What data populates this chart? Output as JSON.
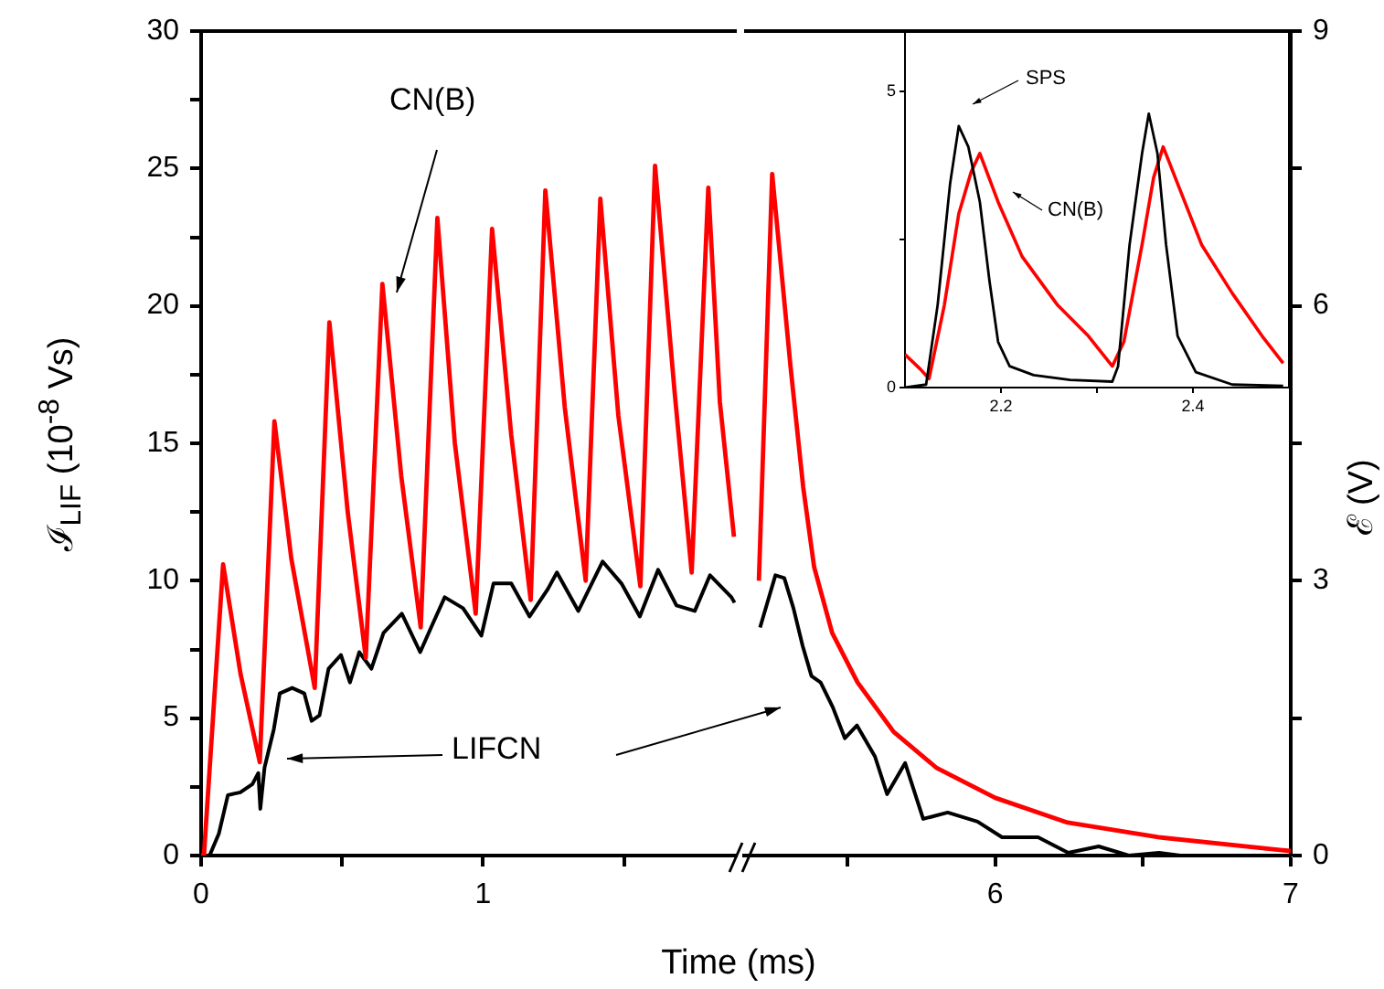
{
  "chart_data": [
    {
      "type": "line",
      "annotations": [
        "CN(B)",
        "LIFCN"
      ],
      "xlabel": "Time (ms)",
      "ylabel": "ℐ$_{LIF}$ (10$^{-8}$ Vs)",
      "xlim": [
        0,
        1.9
      ],
      "xticks": [
        0,
        {
          "value": 0.5,
          "label": null
        },
        1,
        {
          "value": 1.5,
          "label": null
        }
      ],
      "ylim": [
        0,
        30
      ],
      "yticks": [
        0,
        {
          "value": 2.5,
          "label": null
        },
        5,
        {
          "value": 7.5,
          "label": null
        },
        10,
        {
          "value": 12.5,
          "label": null
        },
        15,
        {
          "value": 17.5,
          "label": null
        },
        20,
        {
          "value": 22.5,
          "label": null
        },
        25,
        {
          "value": 27.5,
          "label": null
        },
        30
      ],
      "legend": false,
      "grid": false,
      "series": [
        {
          "color": "#ff0000",
          "x": [
            0,
            0.01,
            0.078,
            0.14,
            0.208,
            0.26,
            0.32,
            0.403,
            0.455,
            0.52,
            0.584,
            0.643,
            0.71,
            0.779,
            0.838,
            0.9,
            0.974,
            1.032,
            1.1,
            1.169,
            1.221,
            1.29,
            1.364,
            1.416,
            1.48,
            1.558,
            1.61,
            1.68,
            1.74,
            1.799,
            1.84,
            1.89
          ],
          "values": [
            0,
            0,
            10.6,
            6.6,
            3.4,
            15.8,
            10.8,
            6.1,
            19.4,
            12.5,
            7.2,
            20.8,
            13.8,
            8.3,
            23.2,
            15.0,
            8.8,
            22.8,
            15.3,
            9.3,
            24.2,
            16.3,
            10.0,
            23.9,
            16.0,
            9.8,
            25.1,
            16.8,
            10.3,
            24.3,
            16.5,
            11.6
          ]
        },
        {
          "color": "#000000",
          "x": [
            0,
            0.03,
            0.063,
            0.095,
            0.139,
            0.182,
            0.203,
            0.21,
            0.225,
            0.258,
            0.279,
            0.323,
            0.366,
            0.392,
            0.42,
            0.452,
            0.496,
            0.528,
            0.561,
            0.604,
            0.647,
            0.712,
            0.777,
            0.82,
            0.864,
            0.929,
            0.994,
            1.037,
            1.1,
            1.165,
            1.23,
            1.262,
            1.338,
            1.424,
            1.491,
            1.556,
            1.621,
            1.686,
            1.751,
            1.805,
            1.881,
            1.892
          ],
          "values": [
            0,
            0,
            0.8,
            2.2,
            2.3,
            2.6,
            3.0,
            1.7,
            3.2,
            4.6,
            5.9,
            6.1,
            5.9,
            4.9,
            5.1,
            6.8,
            7.3,
            6.3,
            7.4,
            6.8,
            8.1,
            8.8,
            7.4,
            8.4,
            9.4,
            9.0,
            8.0,
            9.9,
            9.9,
            8.7,
            9.7,
            10.3,
            8.9,
            10.7,
            9.9,
            8.7,
            10.4,
            9.1,
            8.9,
            10.2,
            9.4,
            9.2
          ]
        }
      ]
    },
    {
      "type": "line",
      "y2label": "ℰ (V)",
      "xlim": [
        5.15,
        7
      ],
      "xticks": [
        {
          "value": 5.5,
          "label": null
        },
        6,
        {
          "value": 6.5,
          "label": null
        },
        7
      ],
      "y2lim": [
        0,
        9
      ],
      "y2ticks": [
        0,
        {
          "value": 1.5,
          "label": null
        },
        3,
        {
          "value": 4.5,
          "label": null
        },
        6,
        {
          "value": 7.5,
          "label": null
        },
        9
      ],
      "legend": false,
      "grid": false,
      "series": [
        {
          "color": "#ff0000",
          "axis": "y2",
          "x": [
            5.2,
            5.245,
            5.307,
            5.35,
            5.387,
            5.448,
            5.534,
            5.656,
            5.8,
            6.0,
            6.245,
            6.552,
            6.963,
            7.0
          ],
          "values": [
            3.0,
            7.44,
            5.34,
            4.02,
            3.15,
            2.43,
            1.89,
            1.35,
            0.96,
            0.63,
            0.36,
            0.2,
            0.06,
            0.05
          ]
        },
        {
          "color": "#000000",
          "axis": "y2",
          "x": [
            5.204,
            5.256,
            5.286,
            5.317,
            5.348,
            5.378,
            5.409,
            5.45,
            5.491,
            5.532,
            5.593,
            5.634,
            5.695,
            5.756,
            5.839,
            5.94,
            6.023,
            6.145,
            6.247,
            6.35,
            6.452,
            6.554,
            6.626
          ],
          "values": [
            2.49,
            3.06,
            3.03,
            2.7,
            2.29,
            1.96,
            1.89,
            1.62,
            1.28,
            1.42,
            1.08,
            0.67,
            1.01,
            0.4,
            0.47,
            0.37,
            0.2,
            0.2,
            0.03,
            0.1,
            0,
            0.03,
            0
          ]
        }
      ]
    },
    {
      "type": "line",
      "annotations": [
        "SPS",
        "CN(B)"
      ],
      "xlim": [
        2.1,
        2.5
      ],
      "xticks": [
        2.2,
        {
          "value": 2.3,
          "label": null
        },
        2.4
      ],
      "ylim": [
        0,
        6
      ],
      "yticks": [
        0,
        {
          "value": 2.5,
          "label": null
        },
        5
      ],
      "legend": false,
      "grid": false,
      "series": [
        {
          "color": "#000000",
          "x": [
            2.1,
            2.122,
            2.134,
            2.147,
            2.156,
            2.166,
            2.178,
            2.188,
            2.197,
            2.209,
            2.234,
            2.272,
            2.316,
            2.322,
            2.334,
            2.347,
            2.354,
            2.363,
            2.372,
            2.384,
            2.403,
            2.441,
            2.494
          ],
          "values": [
            0,
            0.05,
            1.39,
            3.44,
            4.41,
            4.06,
            3.13,
            1.8,
            0.77,
            0.36,
            0.21,
            0.13,
            0.1,
            0.36,
            2.41,
            3.95,
            4.62,
            3.95,
            2.41,
            0.87,
            0.26,
            0.05,
            0.03
          ]
        },
        {
          "color": "#ff0000",
          "x": [
            2.1,
            2.116,
            2.125,
            2.141,
            2.156,
            2.169,
            2.178,
            2.197,
            2.222,
            2.259,
            2.291,
            2.316,
            2.328,
            2.347,
            2.359,
            2.369,
            2.384,
            2.409,
            2.441,
            2.472,
            2.494
          ],
          "values": [
            0.56,
            0.31,
            0.15,
            1.39,
            2.93,
            3.64,
            3.95,
            3.13,
            2.21,
            1.39,
            0.87,
            0.36,
            0.77,
            2.41,
            3.54,
            4.06,
            3.44,
            2.41,
            1.59,
            0.87,
            0.41
          ]
        }
      ]
    }
  ]
}
